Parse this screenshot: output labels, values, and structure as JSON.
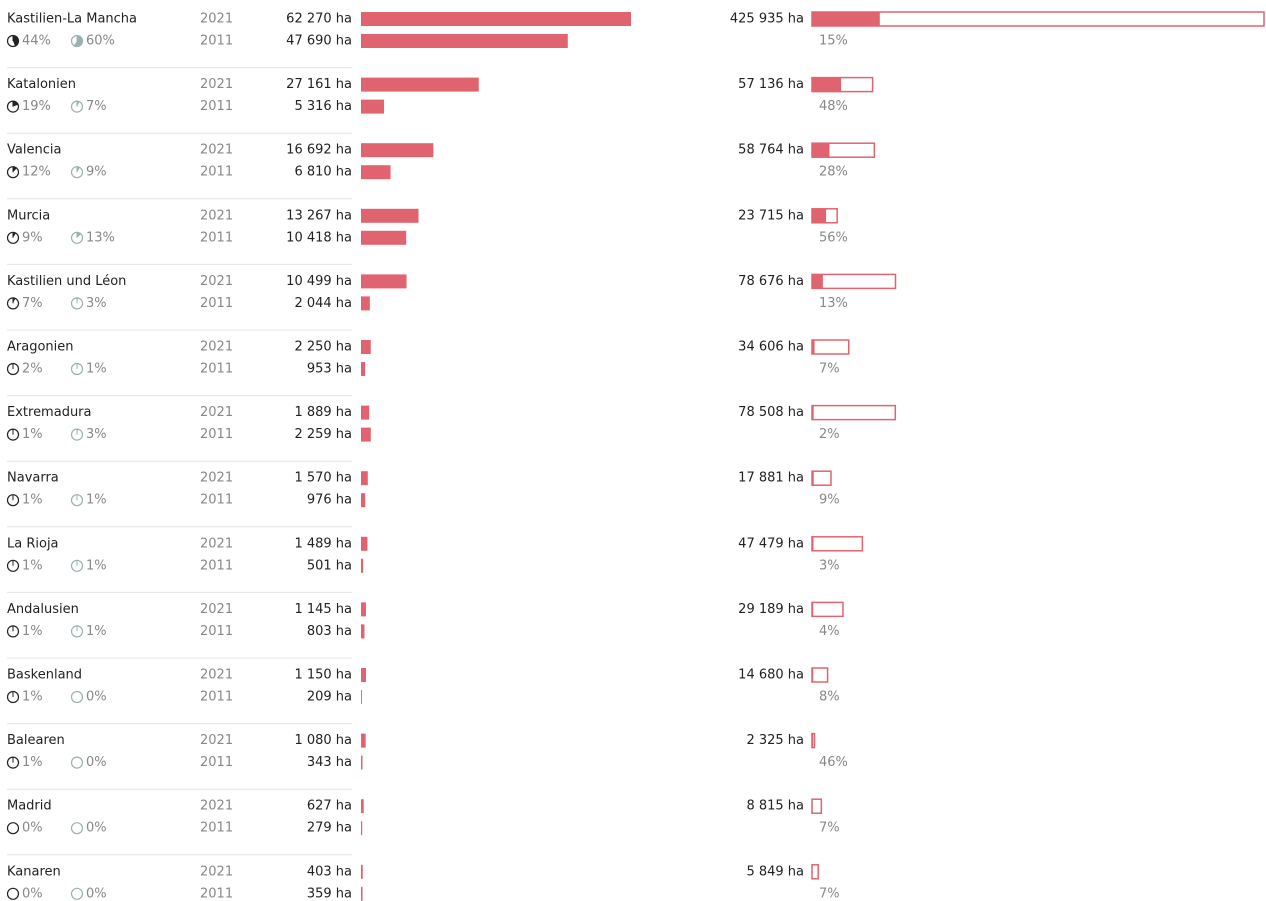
{
  "chart_data": {
    "type": "bar-table",
    "years": [
      "2021",
      "2011"
    ],
    "bar_color": "#e0646f",
    "rows": [
      {
        "name": "Kastilien-La Mancha",
        "shares": [
          44,
          60
        ],
        "share_labels": [
          "44%",
          "60%"
        ],
        "values": [
          62270,
          47690
        ],
        "value_labels": [
          "62 270 ha",
          "47 690 ha"
        ],
        "total": 425935,
        "total_label": "425 935 ha",
        "total_share": 15,
        "total_share_label": "15%"
      },
      {
        "name": "Katalonien",
        "shares": [
          19,
          7
        ],
        "share_labels": [
          "19%",
          "7%"
        ],
        "values": [
          27161,
          5316
        ],
        "value_labels": [
          "27 161 ha",
          "5 316 ha"
        ],
        "total": 57136,
        "total_label": "57 136 ha",
        "total_share": 48,
        "total_share_label": "48%"
      },
      {
        "name": "Valencia",
        "shares": [
          12,
          9
        ],
        "share_labels": [
          "12%",
          "9%"
        ],
        "values": [
          16692,
          6810
        ],
        "value_labels": [
          "16 692 ha",
          "6 810 ha"
        ],
        "total": 58764,
        "total_label": "58 764 ha",
        "total_share": 28,
        "total_share_label": "28%"
      },
      {
        "name": "Murcia",
        "shares": [
          9,
          13
        ],
        "share_labels": [
          "9%",
          "13%"
        ],
        "values": [
          13267,
          10418
        ],
        "value_labels": [
          "13 267 ha",
          "10 418 ha"
        ],
        "total": 23715,
        "total_label": "23 715 ha",
        "total_share": 56,
        "total_share_label": "56%"
      },
      {
        "name": "Kastilien und Léon",
        "shares": [
          7,
          3
        ],
        "share_labels": [
          "7%",
          "3%"
        ],
        "values": [
          10499,
          2044
        ],
        "value_labels": [
          "10 499 ha",
          "2 044 ha"
        ],
        "total": 78676,
        "total_label": "78 676 ha",
        "total_share": 13,
        "total_share_label": "13%"
      },
      {
        "name": "Aragonien",
        "shares": [
          2,
          1
        ],
        "share_labels": [
          "2%",
          "1%"
        ],
        "values": [
          2250,
          953
        ],
        "value_labels": [
          "2 250 ha",
          "953 ha"
        ],
        "total": 34606,
        "total_label": "34 606 ha",
        "total_share": 7,
        "total_share_label": "7%"
      },
      {
        "name": "Extremadura",
        "shares": [
          1,
          3
        ],
        "share_labels": [
          "1%",
          "3%"
        ],
        "values": [
          1889,
          2259
        ],
        "value_labels": [
          "1 889 ha",
          "2 259 ha"
        ],
        "total": 78508,
        "total_label": "78 508 ha",
        "total_share": 2,
        "total_share_label": "2%"
      },
      {
        "name": "Navarra",
        "shares": [
          1,
          1
        ],
        "share_labels": [
          "1%",
          "1%"
        ],
        "values": [
          1570,
          976
        ],
        "value_labels": [
          "1 570 ha",
          "976 ha"
        ],
        "total": 17881,
        "total_label": "17 881 ha",
        "total_share": 9,
        "total_share_label": "9%"
      },
      {
        "name": "La Rioja",
        "shares": [
          1,
          1
        ],
        "share_labels": [
          "1%",
          "1%"
        ],
        "values": [
          1489,
          501
        ],
        "value_labels": [
          "1 489 ha",
          "501 ha"
        ],
        "total": 47479,
        "total_label": "47 479 ha",
        "total_share": 3,
        "total_share_label": "3%"
      },
      {
        "name": "Andalusien",
        "shares": [
          1,
          1
        ],
        "share_labels": [
          "1%",
          "1%"
        ],
        "values": [
          1145,
          803
        ],
        "value_labels": [
          "1 145 ha",
          "803 ha"
        ],
        "total": 29189,
        "total_label": "29 189 ha",
        "total_share": 4,
        "total_share_label": "4%"
      },
      {
        "name": "Baskenland",
        "shares": [
          1,
          0
        ],
        "share_labels": [
          "1%",
          "0%"
        ],
        "values": [
          1150,
          209
        ],
        "value_labels": [
          "1 150 ha",
          "209 ha"
        ],
        "total": 14680,
        "total_label": "14 680 ha",
        "total_share": 8,
        "total_share_label": "8%"
      },
      {
        "name": "Balearen",
        "shares": [
          1,
          0
        ],
        "share_labels": [
          "1%",
          "0%"
        ],
        "values": [
          1080,
          343
        ],
        "value_labels": [
          "1 080 ha",
          "343 ha"
        ],
        "total": 2325,
        "total_label": "2 325 ha",
        "total_share": 46,
        "total_share_label": "46%"
      },
      {
        "name": "Madrid",
        "shares": [
          0,
          0
        ],
        "share_labels": [
          "0%",
          "0%"
        ],
        "values": [
          627,
          279
        ],
        "value_labels": [
          "627 ha",
          "279 ha"
        ],
        "total": 8815,
        "total_label": "8 815 ha",
        "total_share": 7,
        "total_share_label": "7%"
      },
      {
        "name": "Kanaren",
        "shares": [
          0,
          0
        ],
        "share_labels": [
          "0%",
          "0%"
        ],
        "values": [
          403,
          359
        ],
        "value_labels": [
          "403 ha",
          "359 ha"
        ],
        "total": 5849,
        "total_label": "5 849 ha",
        "total_share": 7,
        "total_share_label": "7%"
      }
    ]
  }
}
